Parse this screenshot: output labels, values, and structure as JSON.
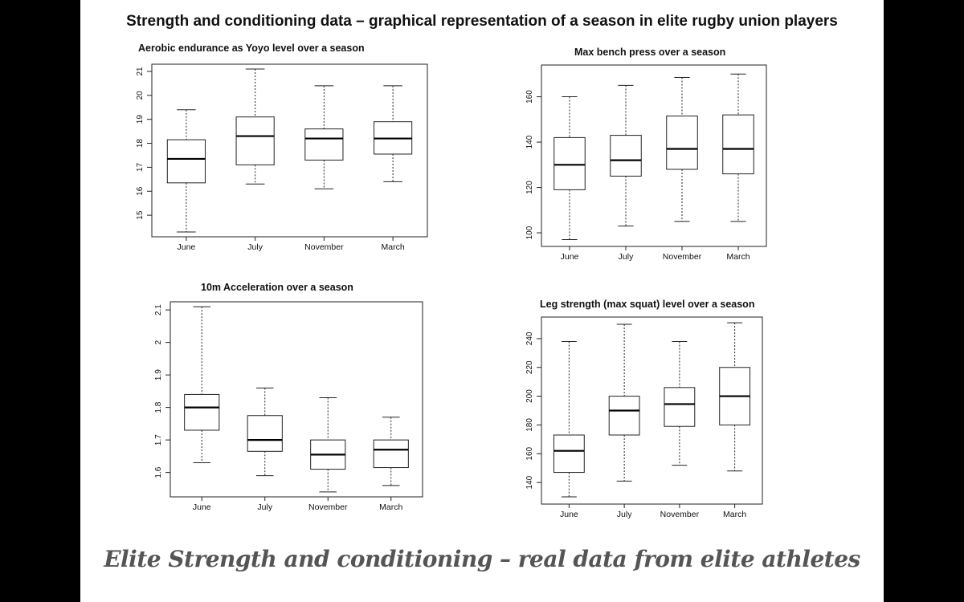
{
  "slide": {
    "title": "Strength and conditioning data – graphical representation of a season in elite rugby union players",
    "footer": "Elite Strength and conditioning – real data from elite athletes"
  },
  "chart_data": [
    {
      "type": "boxplot",
      "title": "Aerobic endurance as Yoyo level over a season",
      "categories": [
        "June",
        "July",
        "November",
        "March"
      ],
      "yticks": [
        15,
        16,
        17,
        18,
        19,
        20,
        21
      ],
      "ylim": [
        14.1,
        21.3
      ],
      "grid": false,
      "boxes": [
        {
          "min": 14.3,
          "q1": 16.35,
          "median": 17.35,
          "q3": 18.15,
          "max": 19.4
        },
        {
          "min": 16.3,
          "q1": 17.1,
          "median": 18.3,
          "q3": 19.1,
          "max": 21.1
        },
        {
          "min": 16.1,
          "q1": 17.3,
          "median": 18.2,
          "q3": 18.6,
          "max": 20.4
        },
        {
          "min": 16.4,
          "q1": 17.55,
          "median": 18.2,
          "q3": 18.9,
          "max": 20.4
        }
      ]
    },
    {
      "type": "boxplot",
      "title": "Max bench press over a season",
      "categories": [
        "June",
        "July",
        "November",
        "March"
      ],
      "yticks": [
        100,
        120,
        140,
        160
      ],
      "ylim": [
        94,
        174
      ],
      "grid": false,
      "boxes": [
        {
          "min": 97,
          "q1": 119,
          "median": 130,
          "q3": 142,
          "max": 160
        },
        {
          "min": 103,
          "q1": 125,
          "median": 132,
          "q3": 143,
          "max": 165
        },
        {
          "min": 105,
          "q1": 128,
          "median": 137,
          "q3": 151.5,
          "max": 168.5
        },
        {
          "min": 105,
          "q1": 126,
          "median": 137,
          "q3": 152,
          "max": 170
        }
      ]
    },
    {
      "type": "boxplot",
      "title": "10m Acceleration over a season",
      "categories": [
        "June",
        "July",
        "November",
        "March"
      ],
      "yticks": [
        1.6,
        1.7,
        1.8,
        1.9,
        2.0,
        2.1
      ],
      "ylim": [
        1.525,
        2.125
      ],
      "grid": false,
      "boxes": [
        {
          "min": 1.63,
          "q1": 1.73,
          "median": 1.8,
          "q3": 1.84,
          "max": 2.11
        },
        {
          "min": 1.59,
          "q1": 1.665,
          "median": 1.7,
          "q3": 1.775,
          "max": 1.86
        },
        {
          "min": 1.54,
          "q1": 1.61,
          "median": 1.655,
          "q3": 1.7,
          "max": 1.83
        },
        {
          "min": 1.56,
          "q1": 1.615,
          "median": 1.67,
          "q3": 1.7,
          "max": 1.77
        }
      ]
    },
    {
      "type": "boxplot",
      "title": "Leg strength (max squat) level over a season",
      "categories": [
        "June",
        "July",
        "November",
        "March"
      ],
      "yticks": [
        140,
        160,
        180,
        200,
        220,
        240
      ],
      "ylim": [
        125,
        255
      ],
      "grid": false,
      "boxes": [
        {
          "min": 130,
          "q1": 147,
          "median": 162,
          "q3": 173,
          "max": 238
        },
        {
          "min": 141,
          "q1": 173,
          "median": 190,
          "q3": 200,
          "max": 250
        },
        {
          "min": 152,
          "q1": 179,
          "median": 194.5,
          "q3": 206,
          "max": 238
        },
        {
          "min": 148,
          "q1": 180,
          "median": 200,
          "q3": 220,
          "max": 251
        }
      ]
    }
  ]
}
